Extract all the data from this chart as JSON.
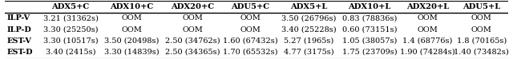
{
  "columns": [
    "",
    "ADX5+C",
    "ADX10+C",
    "ADX20+C",
    "ADU5+C",
    "ADX5+L",
    "ADX10+L",
    "ADX20+L",
    "ADU5+L"
  ],
  "rows": [
    [
      "ILP-V",
      "3.21 (31362s)",
      "OOM",
      "OOM",
      "OOM",
      "3.50 (26796s)",
      "0.83 (78836s)",
      "OOM",
      "OOM"
    ],
    [
      "ILP-D",
      "3.30 (25250s)",
      "OOM",
      "OOM",
      "OOM",
      "3.40 (25228s)",
      "0.60 (73151s)",
      "OOM",
      "OOM"
    ],
    [
      "EST-V",
      "3.30 (10517s)",
      "3.50 (20498s)",
      "2.50 (34762s)",
      "1.60 (67432s)",
      "5.27 (1965s)",
      "1.05 (38057s)",
      "1.4 (68776s)",
      "1.8 (70165s)"
    ],
    [
      "EST-D",
      "3.40 (2415s)",
      "3.30 (14839s)",
      "2.50 (34365s)",
      "1.70 (65532s)",
      "4.77 (3175s)",
      "1.75 (23709s)",
      "1.90 (74284s)",
      "1.40 (73482s)"
    ]
  ],
  "font_size": 7.0,
  "fig_width": 6.4,
  "fig_height": 0.74,
  "background_color": "#ffffff"
}
